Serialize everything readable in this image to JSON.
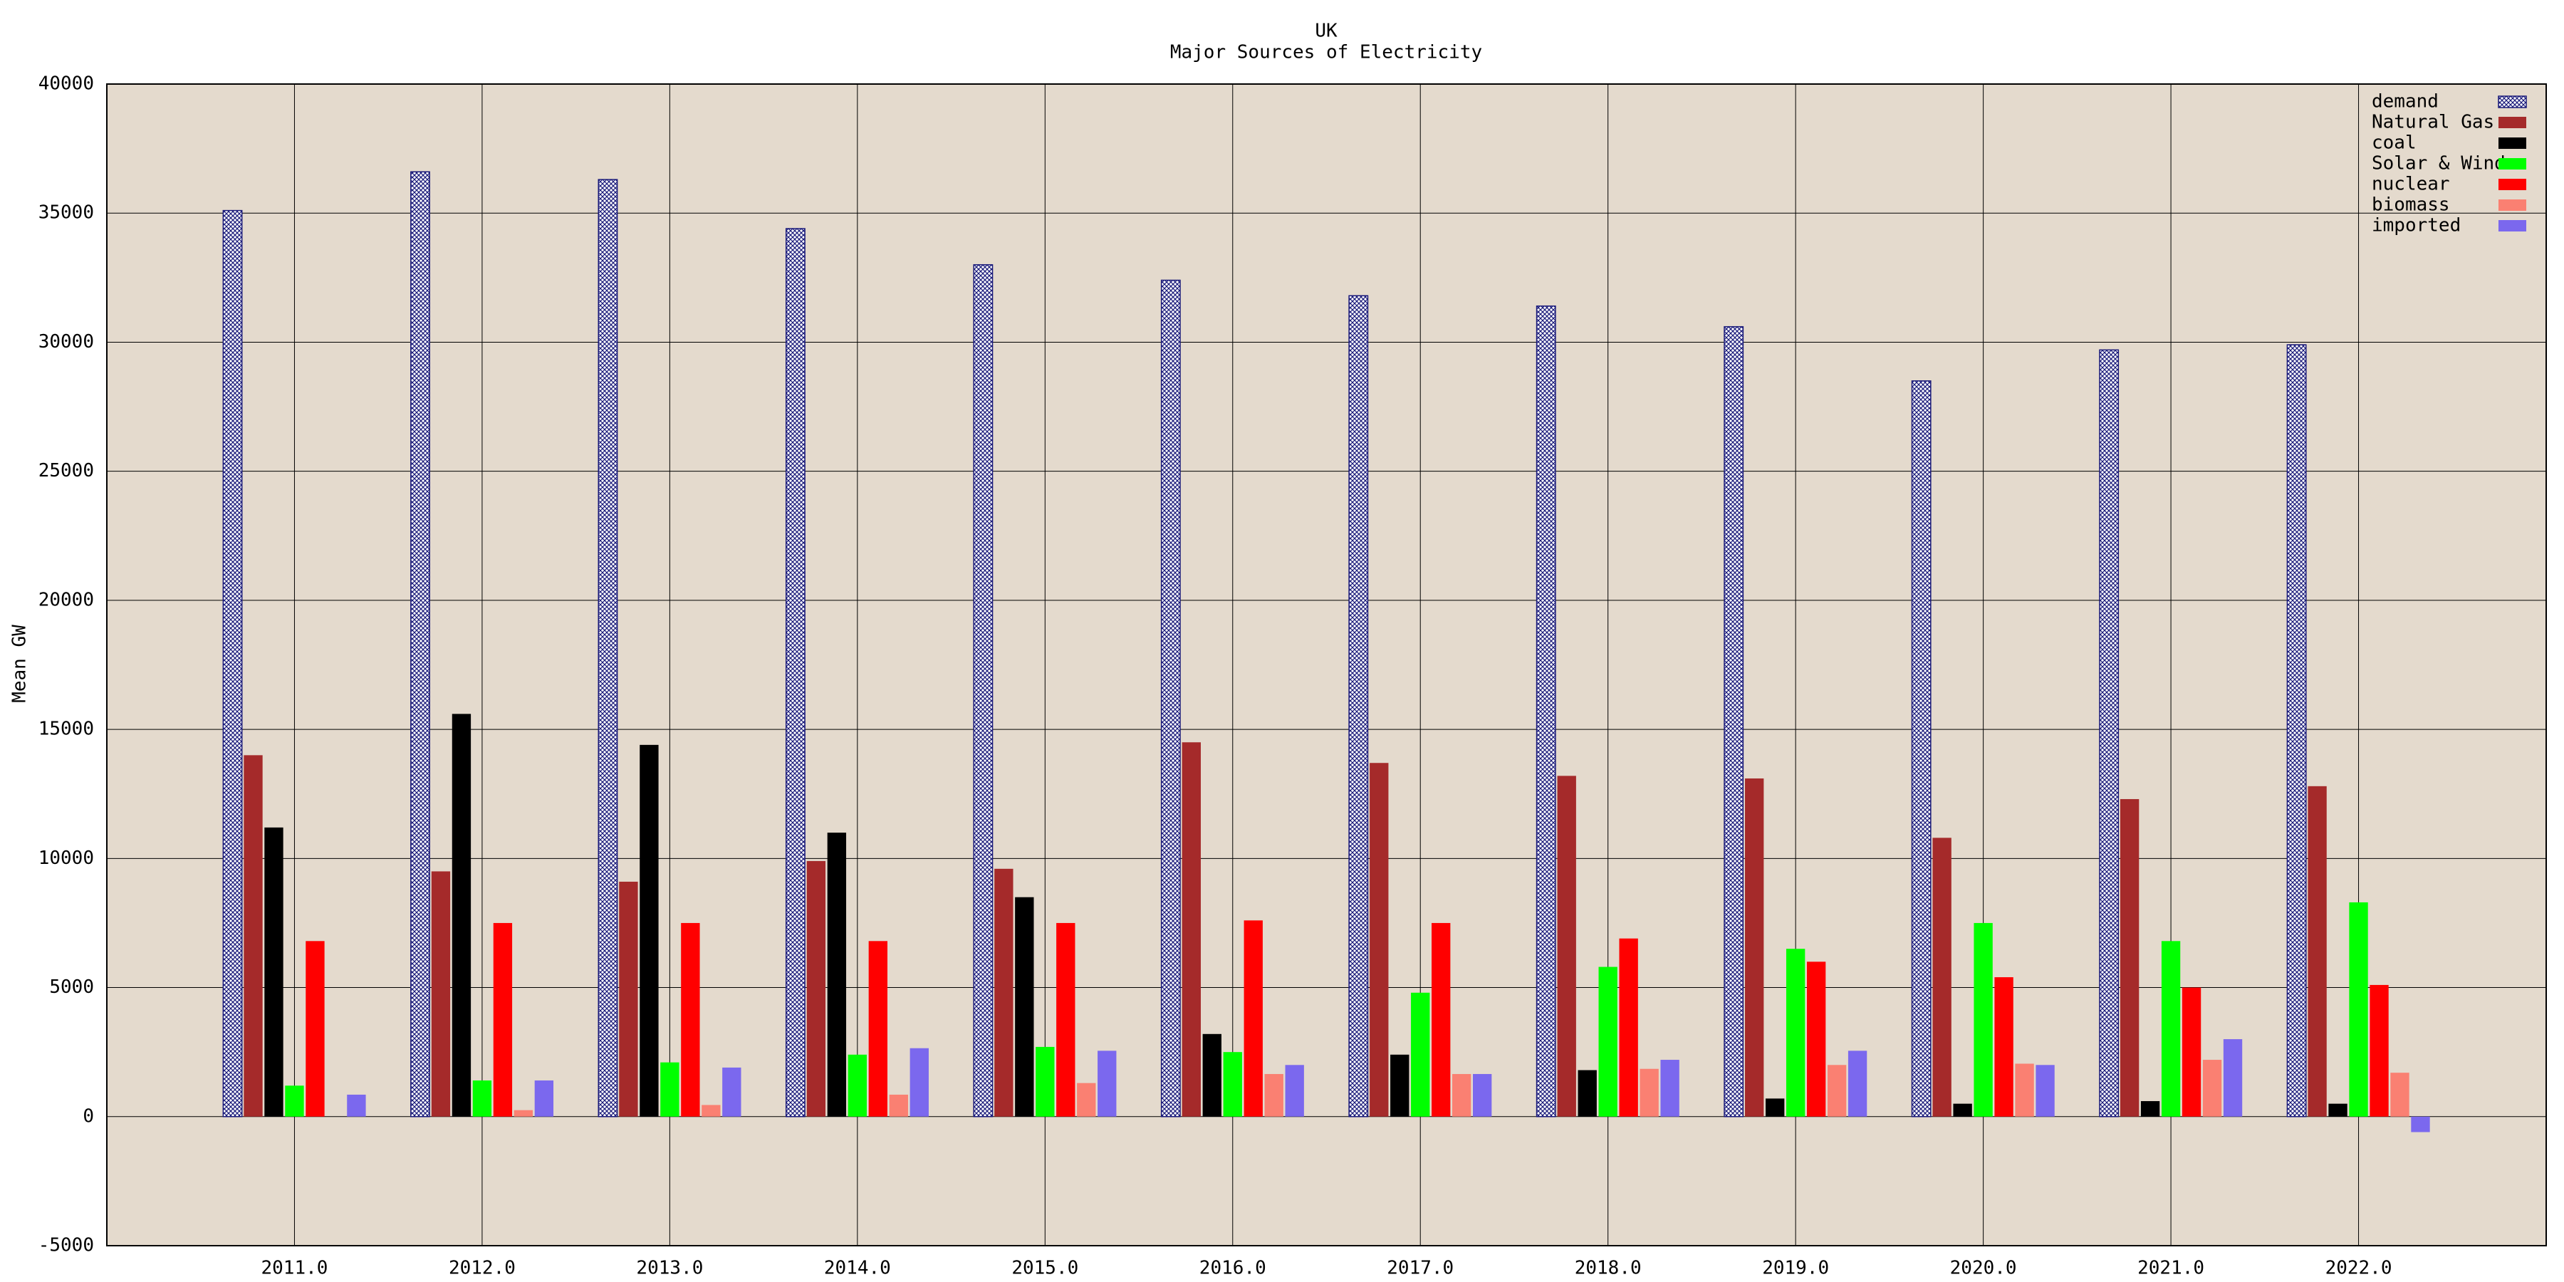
{
  "chart_data": {
    "type": "bar",
    "title": "UK",
    "subtitle": "Major Sources of Electricity",
    "y_label": "Mean GW",
    "x": [
      2011,
      2012,
      2013,
      2014,
      2015,
      2016,
      2017,
      2018,
      2019,
      2020,
      2021,
      2022
    ],
    "xlim": [
      2010,
      2023
    ],
    "xticks": [
      {
        "value": 2011,
        "label": "2011.0"
      },
      {
        "value": 2012,
        "label": "2012.0"
      },
      {
        "value": 2013,
        "label": "2013.0"
      },
      {
        "value": 2014,
        "label": "2014.0"
      },
      {
        "value": 2015,
        "label": "2015.0"
      },
      {
        "value": 2016,
        "label": "2016.0"
      },
      {
        "value": 2017,
        "label": "2017.0"
      },
      {
        "value": 2018,
        "label": "2018.0"
      },
      {
        "value": 2019,
        "label": "2019.0"
      },
      {
        "value": 2020,
        "label": "2020.0"
      },
      {
        "value": 2021,
        "label": "2021.0"
      },
      {
        "value": 2022,
        "label": "2022.0"
      }
    ],
    "ylim": [
      -5000,
      40000
    ],
    "yticks": [
      -5000,
      0,
      5000,
      10000,
      15000,
      20000,
      25000,
      30000,
      35000,
      40000
    ],
    "grid": true,
    "legend": "top-right",
    "background": "#e4dacd",
    "series": [
      {
        "name": "demand",
        "color": "#1a1a7a",
        "hatch": true,
        "values": [
          35100,
          36600,
          36300,
          34400,
          33000,
          32400,
          31800,
          31400,
          30600,
          28500,
          29700,
          29900
        ]
      },
      {
        "name": "Natural Gas",
        "color": "#a52a2a",
        "values": [
          14000,
          9500,
          9100,
          9900,
          9600,
          14500,
          13700,
          13200,
          13100,
          10800,
          12300,
          12800
        ]
      },
      {
        "name": "coal",
        "color": "#000000",
        "values": [
          11200,
          15600,
          14400,
          11000,
          8500,
          3200,
          2400,
          1800,
          700,
          500,
          600,
          500
        ]
      },
      {
        "name": "Solar & Wind",
        "color": "#00ff00",
        "values": [
          1200,
          1400,
          2100,
          2400,
          2700,
          2500,
          4800,
          5800,
          6500,
          7500,
          6800,
          8300
        ]
      },
      {
        "name": "nuclear",
        "color": "#ff0000",
        "values": [
          6800,
          7500,
          7500,
          6800,
          7500,
          7600,
          7500,
          6900,
          6000,
          5400,
          5000,
          5100
        ]
      },
      {
        "name": "biomass",
        "color": "#fa8072",
        "values": [
          null,
          250,
          450,
          850,
          1300,
          1650,
          1650,
          1850,
          2000,
          2050,
          2200,
          1700
        ]
      },
      {
        "name": "imported",
        "color": "#7b68ee",
        "values": [
          850,
          1400,
          1900,
          2650,
          2550,
          2000,
          1650,
          2200,
          2550,
          2000,
          3000,
          -600
        ]
      }
    ]
  }
}
